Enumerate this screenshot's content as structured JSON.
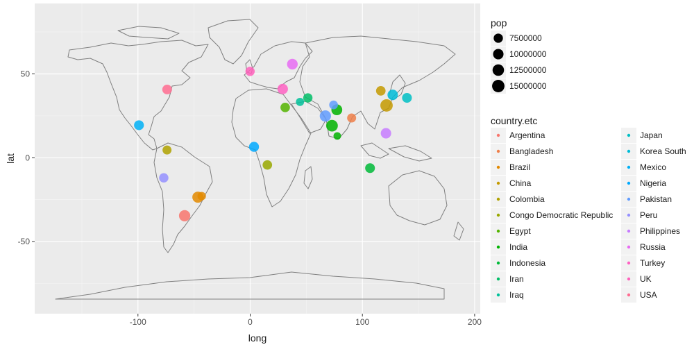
{
  "chart_data": {
    "type": "scatter",
    "title": "",
    "xlabel": "long",
    "ylabel": "lat",
    "xlim": [
      -192,
      205
    ],
    "ylim": [
      -93,
      92
    ],
    "xticks": [
      -100,
      0,
      100,
      200
    ],
    "yticks": [
      -50,
      0,
      50
    ],
    "xtick_labels": [
      "-100",
      "0",
      "100",
      "200"
    ],
    "ytick_labels": [
      "-50",
      "0",
      "50"
    ],
    "grid": true,
    "legend_placement": "right",
    "size_legend": {
      "title": "pop",
      "entries": [
        {
          "label": "7500000",
          "value": 7500000
        },
        {
          "label": "10000000",
          "value": 10000000
        },
        {
          "label": "12500000",
          "value": 12500000
        },
        {
          "label": "15000000",
          "value": 15000000
        }
      ]
    },
    "color_legend": {
      "title": "country.etc",
      "entries": [
        {
          "label": "Argentina",
          "color": "#F8766D"
        },
        {
          "label": "Bangladesh",
          "color": "#EF7F49"
        },
        {
          "label": "Brazil",
          "color": "#E38900"
        },
        {
          "label": "China",
          "color": "#C49A00"
        },
        {
          "label": "Colombia",
          "color": "#B0A200"
        },
        {
          "label": "Congo Democratic Republic",
          "color": "#99A800"
        },
        {
          "label": "Egypt",
          "color": "#53B400"
        },
        {
          "label": "India",
          "color": "#00B300"
        },
        {
          "label": "Indonesia",
          "color": "#00BA38"
        },
        {
          "label": "Iran",
          "color": "#00BE67"
        },
        {
          "label": "Iraq",
          "color": "#00C19A"
        },
        {
          "label": "Japan",
          "color": "#00BFC4"
        },
        {
          "label": "Korea South",
          "color": "#00BCD8"
        },
        {
          "label": "Mexico",
          "color": "#00B0F6"
        },
        {
          "label": "Nigeria",
          "color": "#00A9FF"
        },
        {
          "label": "Pakistan",
          "color": "#619CFF"
        },
        {
          "label": "Peru",
          "color": "#9590FF"
        },
        {
          "label": "Philippines",
          "color": "#C77CFF"
        },
        {
          "label": "Russia",
          "color": "#E76BF3"
        },
        {
          "label": "Turkey",
          "color": "#FF61C3"
        },
        {
          "label": "UK",
          "color": "#FF62BC"
        },
        {
          "label": "USA",
          "color": "#FF6C91"
        }
      ]
    },
    "points": [
      {
        "country": "Argentina",
        "long": -58.4,
        "lat": -34.6,
        "pop": 12000000
      },
      {
        "country": "Bangladesh",
        "long": 90.4,
        "lat": 23.7,
        "pop": 7000000
      },
      {
        "country": "Brazil",
        "long": -46.6,
        "lat": -23.5,
        "pop": 11500000
      },
      {
        "country": "Brazil",
        "long": -43.2,
        "lat": -22.9,
        "pop": 6000000
      },
      {
        "country": "China",
        "long": 121.5,
        "lat": 31.2,
        "pop": 15000000
      },
      {
        "country": "China",
        "long": 116.4,
        "lat": 39.9,
        "pop": 8000000
      },
      {
        "country": "Colombia",
        "long": -74.1,
        "lat": 4.6,
        "pop": 7000000
      },
      {
        "country": "Congo Democratic Republic",
        "long": 15.3,
        "lat": -4.3,
        "pop": 8000000
      },
      {
        "country": "Egypt",
        "long": 31.2,
        "lat": 30.0,
        "pop": 8000000
      },
      {
        "country": "India",
        "long": 72.9,
        "lat": 19.1,
        "pop": 13000000
      },
      {
        "country": "India",
        "long": 77.2,
        "lat": 28.6,
        "pop": 11000000
      },
      {
        "country": "India",
        "long": 77.6,
        "lat": 13.0,
        "pop": 4500000
      },
      {
        "country": "Indonesia",
        "long": 106.8,
        "lat": -6.2,
        "pop": 8500000
      },
      {
        "country": "Iran",
        "long": 51.4,
        "lat": 35.7,
        "pop": 7500000
      },
      {
        "country": "Iraq",
        "long": 44.4,
        "lat": 33.3,
        "pop": 5500000
      },
      {
        "country": "Japan",
        "long": 139.7,
        "lat": 35.7,
        "pop": 8500000
      },
      {
        "country": "Korea South",
        "long": 127.0,
        "lat": 37.5,
        "pop": 10000000
      },
      {
        "country": "Mexico",
        "long": -99.1,
        "lat": 19.4,
        "pop": 8700000
      },
      {
        "country": "Nigeria",
        "long": 3.4,
        "lat": 6.5,
        "pop": 9000000
      },
      {
        "country": "Pakistan",
        "long": 67.0,
        "lat": 24.9,
        "pop": 12000000
      },
      {
        "country": "Pakistan",
        "long": 74.3,
        "lat": 31.5,
        "pop": 6500000
      },
      {
        "country": "Peru",
        "long": -77.0,
        "lat": -12.0,
        "pop": 7700000
      },
      {
        "country": "Philippines",
        "long": 121.0,
        "lat": 14.6,
        "pop": 10000000
      },
      {
        "country": "Russia",
        "long": 37.6,
        "lat": 55.8,
        "pop": 10500000
      },
      {
        "country": "Turkey",
        "long": 29.0,
        "lat": 41.0,
        "pop": 10000000
      },
      {
        "country": "UK",
        "long": -0.1,
        "lat": 51.5,
        "pop": 7500000
      },
      {
        "country": "USA",
        "long": -74.0,
        "lat": 40.7,
        "pop": 8300000
      }
    ]
  }
}
